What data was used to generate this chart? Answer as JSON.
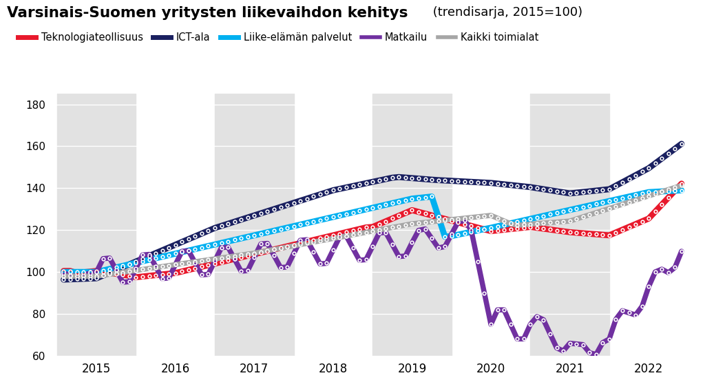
{
  "title_bold": "Varsinais-Suomen yritysten liikevaihdon kehitys",
  "title_normal": " (trendisarja, 2015=100)",
  "background_color": "#ffffff",
  "band_color": "#e2e2e2",
  "ylim": [
    60,
    185
  ],
  "yticks": [
    60,
    80,
    100,
    120,
    140,
    160,
    180
  ],
  "xlim_start": 2014.42,
  "xlim_end": 2022.58,
  "band_ranges": [
    [
      2014.5,
      2015.5
    ],
    [
      2016.5,
      2017.5
    ],
    [
      2018.5,
      2019.5
    ],
    [
      2020.5,
      2021.5
    ]
  ],
  "series_colors": {
    "Teknologiateollisuus": "#e8192c",
    "ICT-ala": "#1a2060",
    "Liike-elaman palvelut": "#00b0f0",
    "Matkailu": "#7030a0",
    "Kaikki toimialat": "#a6a6a6"
  },
  "dot_series": [
    "Teknologiateollisuus",
    "ICT-ala",
    "Liike-elaman palvelut",
    "Matkailu",
    "Kaikki toimialat"
  ]
}
